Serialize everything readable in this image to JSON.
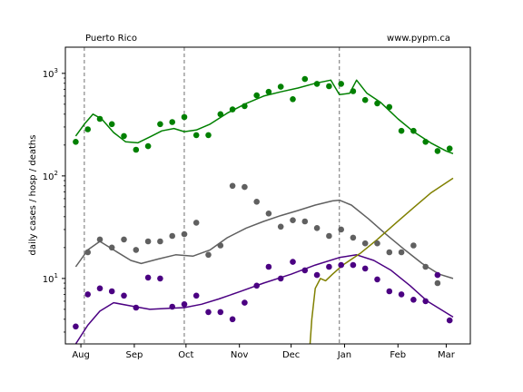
{
  "chart_data": {
    "type": "scatter",
    "title_left": "Puerto Rico",
    "title_right": "www.pypm.ca",
    "ylabel": "daily cases / hosp / deaths",
    "y_scale": "log",
    "y_major_ticks": [
      {
        "value": 10,
        "base": "10",
        "exp": "1"
      },
      {
        "value": 100,
        "base": "10",
        "exp": "2"
      },
      {
        "value": 1000,
        "base": "10",
        "exp": "3"
      }
    ],
    "ylim": [
      2.3,
      1800
    ],
    "x_ticks": [
      {
        "label": "Aug",
        "date": "2020-08-01"
      },
      {
        "label": "Sep",
        "date": "2020-09-01"
      },
      {
        "label": "Oct",
        "date": "2020-10-01"
      },
      {
        "label": "Nov",
        "date": "2020-11-01"
      },
      {
        "label": "Dec",
        "date": "2020-12-01"
      },
      {
        "label": "Jan",
        "date": "2021-01-01"
      },
      {
        "label": "Feb",
        "date": "2021-02-01"
      },
      {
        "label": "Mar",
        "date": "2021-03-01"
      }
    ],
    "xlim": [
      "2020-07-23",
      "2021-03-15"
    ],
    "vlines": [
      "2020-08-03",
      "2020-09-30",
      "2020-12-29"
    ],
    "series": [
      {
        "color": "#008000",
        "points": [
          [
            "2020-07-29",
            215
          ],
          [
            "2020-08-05",
            285
          ],
          [
            "2020-08-12",
            360
          ],
          [
            "2020-08-19",
            320
          ],
          [
            "2020-08-26",
            245
          ],
          [
            "2020-09-02",
            180
          ],
          [
            "2020-09-09",
            195
          ],
          [
            "2020-09-16",
            320
          ],
          [
            "2020-09-23",
            335
          ],
          [
            "2020-09-30",
            375
          ],
          [
            "2020-10-07",
            250
          ],
          [
            "2020-10-14",
            250
          ],
          [
            "2020-10-21",
            400
          ],
          [
            "2020-10-28",
            445
          ],
          [
            "2020-11-04",
            480
          ],
          [
            "2020-11-11",
            610
          ],
          [
            "2020-11-18",
            660
          ],
          [
            "2020-11-25",
            740
          ],
          [
            "2020-12-02",
            560
          ],
          [
            "2020-12-09",
            880
          ],
          [
            "2020-12-16",
            790
          ],
          [
            "2020-12-23",
            750
          ],
          [
            "2020-12-30",
            790
          ],
          [
            "2021-01-06",
            670
          ],
          [
            "2021-01-13",
            550
          ],
          [
            "2021-01-20",
            510
          ],
          [
            "2021-01-27",
            470
          ],
          [
            "2021-02-03",
            275
          ],
          [
            "2021-02-10",
            275
          ],
          [
            "2021-02-17",
            215
          ],
          [
            "2021-02-24",
            175
          ],
          [
            "2021-03-03",
            185
          ]
        ],
        "curve": [
          [
            "2020-07-29",
            245
          ],
          [
            "2020-08-03",
            320
          ],
          [
            "2020-08-08",
            400
          ],
          [
            "2020-08-13",
            360
          ],
          [
            "2020-08-20",
            265
          ],
          [
            "2020-08-27",
            215
          ],
          [
            "2020-09-03",
            210
          ],
          [
            "2020-09-10",
            240
          ],
          [
            "2020-09-17",
            275
          ],
          [
            "2020-09-24",
            290
          ],
          [
            "2020-09-30",
            270
          ],
          [
            "2020-10-07",
            280
          ],
          [
            "2020-10-15",
            320
          ],
          [
            "2020-10-25",
            410
          ],
          [
            "2020-11-05",
            510
          ],
          [
            "2020-11-15",
            600
          ],
          [
            "2020-11-25",
            660
          ],
          [
            "2020-12-05",
            720
          ],
          [
            "2020-12-15",
            800
          ],
          [
            "2020-12-24",
            860
          ],
          [
            "2020-12-29",
            620
          ],
          [
            "2021-01-04",
            640
          ],
          [
            "2021-01-08",
            860
          ],
          [
            "2021-01-14",
            640
          ],
          [
            "2021-01-22",
            520
          ],
          [
            "2021-02-01",
            360
          ],
          [
            "2021-02-10",
            270
          ],
          [
            "2021-02-20",
            210
          ],
          [
            "2021-03-01",
            175
          ],
          [
            "2021-03-05",
            165
          ]
        ]
      },
      {
        "color": "#606060",
        "points": [
          [
            "2020-08-05",
            18
          ],
          [
            "2020-08-12",
            24
          ],
          [
            "2020-08-19",
            20
          ],
          [
            "2020-08-26",
            24
          ],
          [
            "2020-09-02",
            19
          ],
          [
            "2020-09-09",
            23
          ],
          [
            "2020-09-16",
            23
          ],
          [
            "2020-09-23",
            26
          ],
          [
            "2020-09-30",
            27
          ],
          [
            "2020-10-07",
            35
          ],
          [
            "2020-10-14",
            17
          ],
          [
            "2020-10-21",
            21
          ],
          [
            "2020-10-28",
            80
          ],
          [
            "2020-11-04",
            78
          ],
          [
            "2020-11-11",
            56
          ],
          [
            "2020-11-18",
            43
          ],
          [
            "2020-11-25",
            32
          ],
          [
            "2020-12-02",
            37
          ],
          [
            "2020-12-09",
            36
          ],
          [
            "2020-12-16",
            31
          ],
          [
            "2020-12-23",
            26
          ],
          [
            "2020-12-30",
            30
          ],
          [
            "2021-01-06",
            25
          ],
          [
            "2021-01-13",
            22
          ],
          [
            "2021-01-20",
            22
          ],
          [
            "2021-01-27",
            18
          ],
          [
            "2021-02-03",
            18
          ],
          [
            "2021-02-10",
            21
          ],
          [
            "2021-02-17",
            13
          ],
          [
            "2021-02-24",
            9
          ]
        ],
        "curve": [
          [
            "2020-07-29",
            13
          ],
          [
            "2020-08-05",
            19
          ],
          [
            "2020-08-12",
            23
          ],
          [
            "2020-08-20",
            19
          ],
          [
            "2020-08-30",
            15
          ],
          [
            "2020-09-05",
            14
          ],
          [
            "2020-09-15",
            15.5
          ],
          [
            "2020-09-25",
            17
          ],
          [
            "2020-10-05",
            16.5
          ],
          [
            "2020-10-15",
            19
          ],
          [
            "2020-10-25",
            25
          ],
          [
            "2020-11-05",
            31
          ],
          [
            "2020-11-15",
            36
          ],
          [
            "2020-11-25",
            41
          ],
          [
            "2020-12-05",
            46
          ],
          [
            "2020-12-15",
            52
          ],
          [
            "2020-12-25",
            57
          ],
          [
            "2020-12-29",
            58
          ],
          [
            "2021-01-05",
            52
          ],
          [
            "2021-01-15",
            38
          ],
          [
            "2021-01-25",
            27
          ],
          [
            "2021-02-05",
            19
          ],
          [
            "2021-02-15",
            14
          ],
          [
            "2021-02-25",
            11
          ],
          [
            "2021-03-05",
            10
          ]
        ]
      },
      {
        "color": "#4b0082",
        "points": [
          [
            "2020-07-29",
            3.4
          ],
          [
            "2020-08-05",
            7
          ],
          [
            "2020-08-12",
            8
          ],
          [
            "2020-08-19",
            7.5
          ],
          [
            "2020-08-26",
            6.8
          ],
          [
            "2020-09-02",
            5.2
          ],
          [
            "2020-09-09",
            10.2
          ],
          [
            "2020-09-16",
            10
          ],
          [
            "2020-09-23",
            5.3
          ],
          [
            "2020-09-30",
            5.6
          ],
          [
            "2020-10-07",
            6.8
          ],
          [
            "2020-10-14",
            4.7
          ],
          [
            "2020-10-21",
            4.7
          ],
          [
            "2020-10-28",
            4
          ],
          [
            "2020-11-04",
            5.8
          ],
          [
            "2020-11-11",
            8.5
          ],
          [
            "2020-11-18",
            13
          ],
          [
            "2020-11-25",
            10
          ],
          [
            "2020-12-02",
            14.5
          ],
          [
            "2020-12-09",
            12
          ],
          [
            "2020-12-16",
            10.8
          ],
          [
            "2020-12-23",
            13
          ],
          [
            "2020-12-30",
            13.5
          ],
          [
            "2021-01-06",
            13.5
          ],
          [
            "2021-01-13",
            12.5
          ],
          [
            "2021-01-20",
            9.8
          ],
          [
            "2021-01-27",
            7.5
          ],
          [
            "2021-02-03",
            7
          ],
          [
            "2021-02-10",
            6.2
          ],
          [
            "2021-02-17",
            6
          ],
          [
            "2021-02-24",
            10.8
          ],
          [
            "2021-03-03",
            3.9
          ]
        ],
        "curve": [
          [
            "2020-07-29",
            2.3
          ],
          [
            "2020-08-05",
            3.5
          ],
          [
            "2020-08-12",
            4.8
          ],
          [
            "2020-08-20",
            5.8
          ],
          [
            "2020-08-30",
            5.4
          ],
          [
            "2020-09-10",
            5
          ],
          [
            "2020-09-20",
            5.1
          ],
          [
            "2020-09-30",
            5.2
          ],
          [
            "2020-10-10",
            5.6
          ],
          [
            "2020-10-20",
            6.3
          ],
          [
            "2020-11-01",
            7.4
          ],
          [
            "2020-11-15",
            9
          ],
          [
            "2020-12-01",
            11
          ],
          [
            "2020-12-15",
            13.5
          ],
          [
            "2020-12-29",
            16
          ],
          [
            "2021-01-08",
            17
          ],
          [
            "2021-01-18",
            15
          ],
          [
            "2021-01-28",
            12
          ],
          [
            "2021-02-08",
            8.5
          ],
          [
            "2021-02-18",
            6
          ],
          [
            "2021-03-05",
            4.2
          ]
        ]
      },
      {
        "color": "#808000",
        "points": [],
        "curve": [
          [
            "2020-12-12",
            2.3
          ],
          [
            "2020-12-13",
            4
          ],
          [
            "2020-12-15",
            8
          ],
          [
            "2020-12-18",
            10
          ],
          [
            "2020-12-21",
            9.5
          ],
          [
            "2020-12-25",
            11
          ],
          [
            "2020-12-31",
            13.5
          ],
          [
            "2021-01-10",
            17.5
          ],
          [
            "2021-01-20",
            24
          ],
          [
            "2021-01-31",
            35
          ],
          [
            "2021-02-10",
            49
          ],
          [
            "2021-02-20",
            68
          ],
          [
            "2021-03-05",
            95
          ]
        ]
      }
    ]
  }
}
